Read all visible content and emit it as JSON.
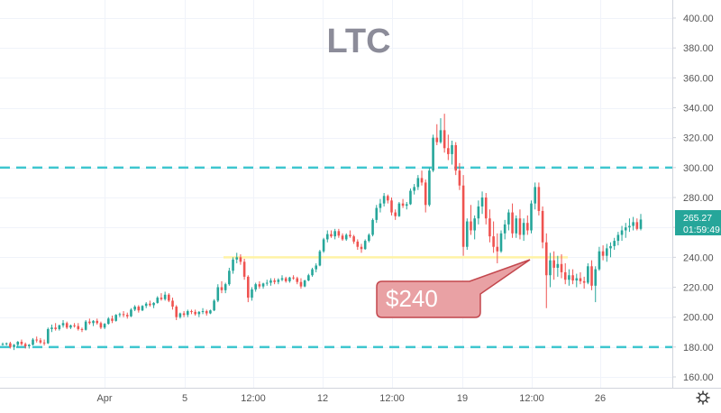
{
  "chart_data": {
    "type": "candlestick",
    "title": "LTC",
    "ylim": [
      150,
      410
    ],
    "y_ticks": [
      "160.00",
      "180.00",
      "200.00",
      "220.00",
      "240.00",
      "260.00",
      "280.00",
      "300.00",
      "320.00",
      "340.00",
      "360.00",
      "380.00",
      "400.00"
    ],
    "x_ticks": [
      "Apr",
      "5",
      "12:00",
      "12",
      "12:00",
      "19",
      "12:00",
      "26"
    ],
    "price_label": {
      "value": "265.27",
      "countdown": "01:59:49"
    },
    "horizontal_levels": [
      {
        "name": "upper-dashed-level",
        "value": 300,
        "color": "#3ec6cf",
        "style": "dashed"
      },
      {
        "name": "lower-dashed-level",
        "value": 180,
        "color": "#3ec6cf",
        "style": "dashed"
      },
      {
        "name": "support-level",
        "value": 240,
        "color": "#fff3a6",
        "style": "solid"
      }
    ],
    "annotation": {
      "text": "$240",
      "fill": "#e9a1a4",
      "border": "#c3474d"
    },
    "colors": {
      "up": "#26a69a",
      "down": "#ef5350",
      "grid": "#f0f3fa",
      "axis_text": "#555555",
      "price_badge": "#26a69a"
    },
    "candles": [
      [
        182,
        183,
        181,
        182
      ],
      [
        182,
        183,
        181,
        182.5
      ],
      [
        182.5,
        183.5,
        179,
        180
      ],
      [
        180,
        182,
        178,
        181.5
      ],
      [
        181.5,
        184,
        180,
        183.5
      ],
      [
        183.5,
        185,
        181,
        182
      ],
      [
        182,
        183,
        179,
        180.5
      ],
      [
        180.5,
        182,
        179,
        181.5
      ],
      [
        181.5,
        186,
        181,
        185
      ],
      [
        185,
        187,
        183,
        184.5
      ],
      [
        184.5,
        186,
        182,
        183
      ],
      [
        183,
        185,
        181,
        182.5
      ],
      [
        182.5,
        193,
        182,
        192
      ],
      [
        192,
        195,
        190,
        193
      ],
      [
        193,
        196,
        191,
        192
      ],
      [
        192,
        195,
        191,
        194.5
      ],
      [
        194.5,
        198,
        193,
        196
      ],
      [
        196,
        197,
        192,
        193
      ],
      [
        193,
        195,
        192,
        194.5
      ],
      [
        194.5,
        196,
        193,
        194
      ],
      [
        194,
        196,
        191,
        192
      ],
      [
        192,
        193,
        190,
        191.5
      ],
      [
        191.5,
        198,
        191,
        197
      ],
      [
        197,
        199,
        195,
        196
      ],
      [
        196,
        198,
        194,
        197.5
      ],
      [
        197.5,
        199,
        195,
        196
      ],
      [
        196,
        197,
        192,
        193
      ],
      [
        193,
        196,
        192,
        195.5
      ],
      [
        195.5,
        200,
        195,
        199
      ],
      [
        199,
        201,
        196,
        197.5
      ],
      [
        197.5,
        202,
        197,
        201.5
      ],
      [
        201.5,
        203,
        200,
        202
      ],
      [
        202,
        204,
        200,
        201.5
      ],
      [
        201.5,
        203,
        199,
        200.5
      ],
      [
        200.5,
        206,
        200,
        205
      ],
      [
        205,
        208,
        204,
        207
      ],
      [
        207,
        208,
        203,
        204.5
      ],
      [
        204.5,
        208,
        204,
        207.5
      ],
      [
        207.5,
        210,
        206,
        209
      ],
      [
        209,
        211,
        207,
        208
      ],
      [
        208,
        210,
        206,
        209.5
      ],
      [
        209.5,
        214,
        209,
        213
      ],
      [
        213,
        216,
        211,
        212
      ],
      [
        212,
        217,
        211,
        215
      ],
      [
        215,
        216,
        210,
        211
      ],
      [
        211,
        213,
        205,
        207
      ],
      [
        207,
        208,
        198,
        200
      ],
      [
        200,
        203,
        199,
        202.5
      ],
      [
        202.5,
        204,
        200,
        201.5
      ],
      [
        201.5,
        205,
        200,
        204
      ],
      [
        204,
        205,
        202,
        203.5
      ],
      [
        203.5,
        205,
        201,
        202
      ],
      [
        202,
        204,
        200,
        203.5
      ],
      [
        203.5,
        206,
        202,
        204
      ],
      [
        204,
        205,
        201,
        202.5
      ],
      [
        202.5,
        205,
        202,
        204.5
      ],
      [
        204.5,
        212,
        204,
        211
      ],
      [
        211,
        222,
        210,
        220
      ],
      [
        220,
        224,
        216,
        218
      ],
      [
        218,
        223,
        216,
        222
      ],
      [
        222,
        233,
        221,
        231
      ],
      [
        231,
        240,
        229,
        238.5
      ],
      [
        238.5,
        243,
        236,
        240
      ],
      [
        240,
        242,
        235,
        237
      ],
      [
        237,
        239,
        225,
        227
      ],
      [
        227,
        228,
        210,
        213
      ],
      [
        213,
        220,
        211,
        218.5
      ],
      [
        218.5,
        223,
        217,
        222
      ],
      [
        222,
        224,
        219,
        220.5
      ],
      [
        220.5,
        223,
        219,
        222.5
      ],
      [
        222.5,
        225,
        221,
        223
      ],
      [
        223,
        226,
        221,
        224.5
      ],
      [
        224.5,
        226,
        222,
        223.5
      ],
      [
        223.5,
        226,
        222,
        225
      ],
      [
        225,
        228,
        224,
        226
      ],
      [
        226,
        227,
        223,
        224
      ],
      [
        224,
        227,
        223,
        226.5
      ],
      [
        226.5,
        228,
        225,
        226
      ],
      [
        226,
        227,
        222,
        223.5
      ],
      [
        223.5,
        226,
        219,
        220.5
      ],
      [
        220.5,
        225,
        220,
        224.5
      ],
      [
        224.5,
        229,
        224,
        228
      ],
      [
        228,
        233,
        227,
        232
      ],
      [
        232,
        236,
        230,
        234.5
      ],
      [
        234.5,
        245,
        234,
        244
      ],
      [
        244,
        253,
        243,
        252
      ],
      [
        252,
        258,
        250,
        255.5
      ],
      [
        255.5,
        258,
        253,
        254
      ],
      [
        254,
        259,
        252,
        257.5
      ],
      [
        257.5,
        259,
        253,
        254.5
      ],
      [
        254.5,
        256,
        251,
        252
      ],
      [
        252,
        256,
        251,
        255
      ],
      [
        255,
        258,
        253,
        254
      ],
      [
        254,
        255,
        249,
        250.5
      ],
      [
        250.5,
        252,
        245,
        247
      ],
      [
        247,
        249,
        243,
        245.5
      ],
      [
        245.5,
        252,
        245,
        251
      ],
      [
        251,
        256,
        250,
        255
      ],
      [
        255,
        266,
        254,
        265
      ],
      [
        265,
        275,
        263,
        273
      ],
      [
        273,
        279,
        270,
        276
      ],
      [
        276,
        283,
        274,
        281
      ],
      [
        281,
        282,
        276,
        278
      ],
      [
        278,
        280,
        268,
        270
      ],
      [
        270,
        272,
        265,
        267.5
      ],
      [
        267.5,
        277,
        267,
        276
      ],
      [
        276,
        279,
        273,
        274.5
      ],
      [
        274.5,
        277,
        272,
        275.5
      ],
      [
        275.5,
        286,
        275,
        284.5
      ],
      [
        284.5,
        289,
        282,
        287
      ],
      [
        287,
        295,
        285,
        293
      ],
      [
        293,
        298,
        288,
        290
      ],
      [
        290,
        292,
        270,
        275
      ],
      [
        275,
        300,
        274,
        298
      ],
      [
        298,
        322,
        297,
        320
      ],
      [
        320,
        329,
        315,
        317
      ],
      [
        317,
        333,
        316,
        325
      ],
      [
        325,
        336,
        310,
        313
      ],
      [
        313,
        322,
        305,
        309
      ],
      [
        309,
        318,
        302,
        315
      ],
      [
        315,
        317,
        295,
        298
      ],
      [
        298,
        303,
        285,
        288
      ],
      [
        288,
        295,
        241,
        247
      ],
      [
        247,
        266,
        245,
        264
      ],
      [
        264,
        275,
        255,
        258
      ],
      [
        258,
        268,
        252,
        266
      ],
      [
        266,
        278,
        262,
        274
      ],
      [
        274,
        284,
        269,
        280
      ],
      [
        280,
        283,
        262,
        266
      ],
      [
        266,
        272,
        250,
        254
      ],
      [
        254,
        264,
        243,
        247
      ],
      [
        247,
        256,
        236,
        244
      ],
      [
        244,
        258,
        243,
        256
      ],
      [
        256,
        265,
        252,
        262
      ],
      [
        262,
        272,
        258,
        270
      ],
      [
        270,
        276,
        253,
        256
      ],
      [
        256,
        268,
        253,
        266
      ],
      [
        266,
        272,
        252,
        255
      ],
      [
        255,
        266,
        251,
        263
      ],
      [
        263,
        268,
        255,
        258
      ],
      [
        258,
        278,
        256,
        276
      ],
      [
        276,
        290,
        272,
        287
      ],
      [
        287,
        290,
        268,
        271
      ],
      [
        271,
        274,
        246,
        250
      ],
      [
        250,
        256,
        206,
        228
      ],
      [
        228,
        243,
        220,
        238
      ],
      [
        238,
        244,
        225,
        233
      ],
      [
        233,
        241,
        227,
        235.5
      ],
      [
        235.5,
        242,
        226,
        230
      ],
      [
        230,
        236,
        222,
        225
      ],
      [
        225,
        232,
        221,
        228
      ],
      [
        228,
        232,
        222,
        224.5
      ],
      [
        224.5,
        229,
        220,
        226
      ],
      [
        226,
        230,
        222,
        224
      ],
      [
        224,
        227,
        219,
        223
      ],
      [
        223,
        236,
        222,
        234
      ],
      [
        234,
        238,
        218,
        221
      ],
      [
        221,
        234,
        210,
        232
      ],
      [
        232,
        247,
        231,
        244
      ],
      [
        244,
        248,
        238,
        241
      ],
      [
        241,
        249,
        237,
        246
      ],
      [
        246,
        250,
        240,
        247.5
      ],
      [
        247.5,
        253,
        245,
        251
      ],
      [
        251,
        257,
        248,
        255
      ],
      [
        255,
        261,
        251,
        258
      ],
      [
        258,
        263,
        253,
        260
      ],
      [
        260,
        266,
        257,
        261
      ],
      [
        261,
        267,
        258,
        263.5
      ],
      [
        263.5,
        266,
        258,
        259
      ],
      [
        259,
        269,
        258,
        265.27
      ]
    ]
  }
}
